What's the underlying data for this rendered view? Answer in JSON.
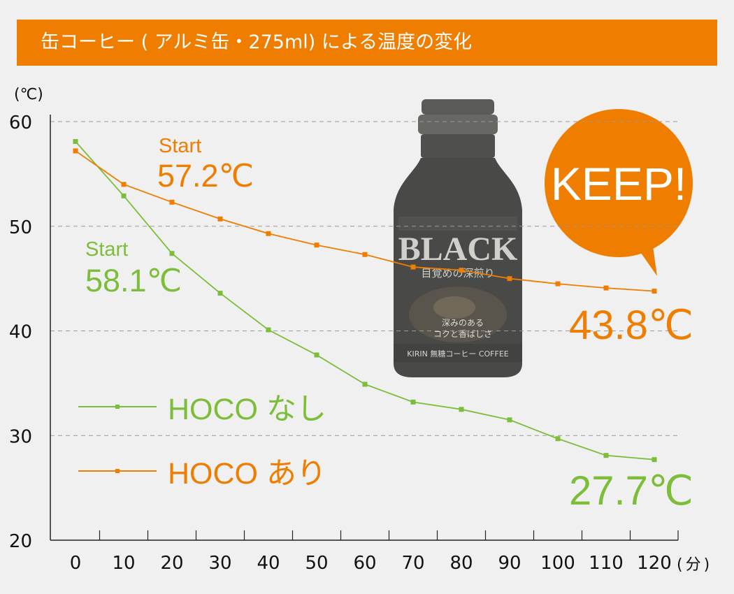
{
  "header": {
    "title": "缶コーヒー ( アルミ缶・275ml) による温度の変化"
  },
  "colors": {
    "orange": "#ee7d00",
    "green": "#7cbd3a",
    "background": "#f0f0f0"
  },
  "chart_data": {
    "type": "line",
    "title": "缶コーヒー ( アルミ缶・275ml) による温度の変化",
    "ylabel": "(℃)",
    "xunit": "(分)",
    "x": [
      0,
      10,
      20,
      30,
      40,
      50,
      60,
      70,
      80,
      90,
      100,
      110,
      120
    ],
    "ylim": [
      20,
      60
    ],
    "yticks": [
      20,
      30,
      40,
      50,
      60
    ],
    "xticks": [
      0,
      10,
      20,
      30,
      40,
      50,
      60,
      70,
      80,
      90,
      100,
      110,
      120
    ],
    "grid": "dashed horizontal",
    "series": [
      {
        "name": "HOCO なし",
        "color": "#7cbd3a",
        "values": [
          58.1,
          52.9,
          47.4,
          43.6,
          40.1,
          37.7,
          34.9,
          33.2,
          32.5,
          31.5,
          29.7,
          28.1,
          27.7
        ]
      },
      {
        "name": "HOCO あり",
        "color": "#ee7d00",
        "values": [
          57.2,
          54.0,
          52.3,
          50.7,
          49.3,
          48.2,
          47.3,
          46.1,
          45.8,
          45.0,
          44.5,
          44.1,
          43.8
        ]
      }
    ],
    "annotations": {
      "orange_start_label": "Start",
      "orange_start_value": "57.2℃",
      "green_start_label": "Start",
      "green_start_value": "58.1℃",
      "orange_end_value": "43.8℃",
      "green_end_value": "27.7℃",
      "keep_bubble": "KEEP!"
    },
    "product_image": {
      "label_main": "BLACK",
      "label_sub": "目覚めの深煎り",
      "label_lines": [
        "深みのある",
        "コクと香ばしさ"
      ],
      "brand": "KIRIN 無糖コーヒー COFFEE"
    },
    "legend_position": "left-middle"
  }
}
